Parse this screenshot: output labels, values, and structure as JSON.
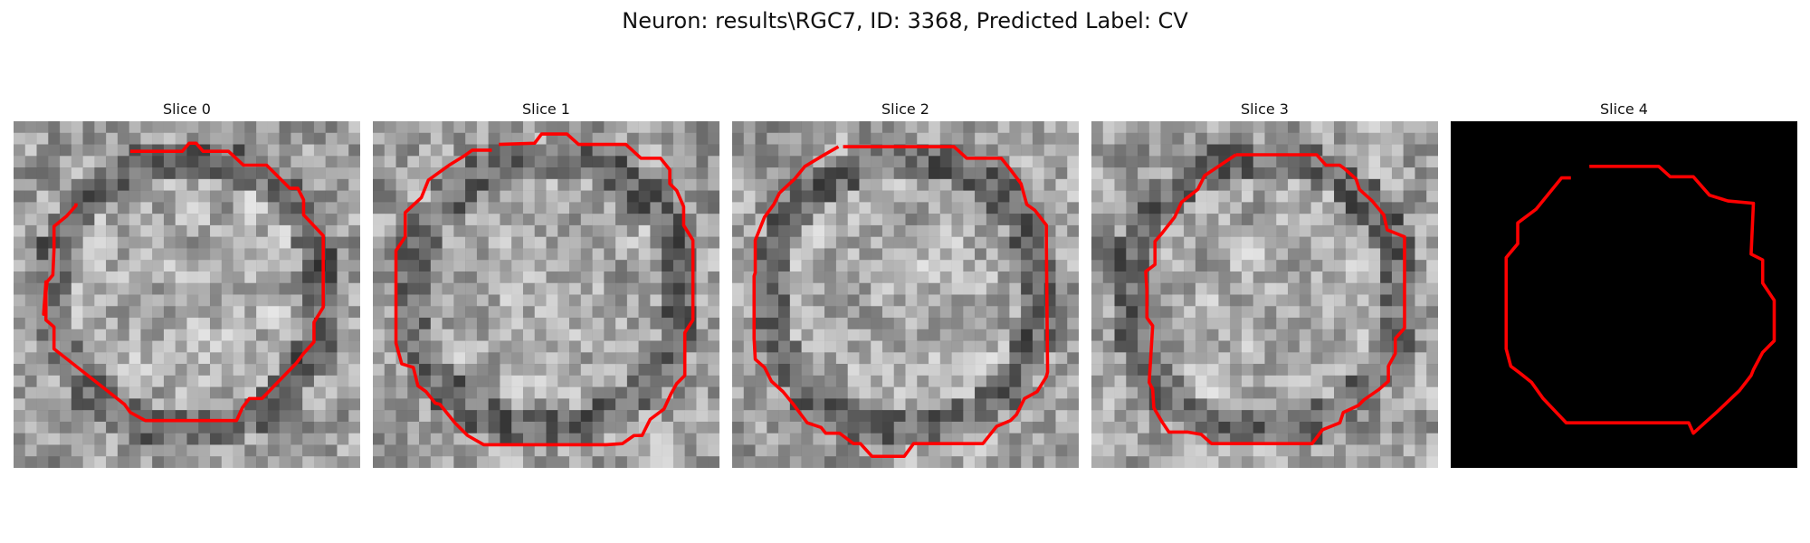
{
  "figure": {
    "title": "Neuron: results\\RGC7, ID: 3368, Predicted Label: CV"
  },
  "panels": [
    {
      "title": "Slice 0",
      "kind": "noise",
      "seed": 11
    },
    {
      "title": "Slice 1",
      "kind": "noise",
      "seed": 23
    },
    {
      "title": "Slice 2",
      "kind": "noise",
      "seed": 37
    },
    {
      "title": "Slice 3",
      "kind": "noise",
      "seed": 51
    },
    {
      "title": "Slice 4",
      "kind": "black",
      "seed": 0
    }
  ],
  "colors": {
    "contour": "#ff0000",
    "background": "#ffffff"
  }
}
